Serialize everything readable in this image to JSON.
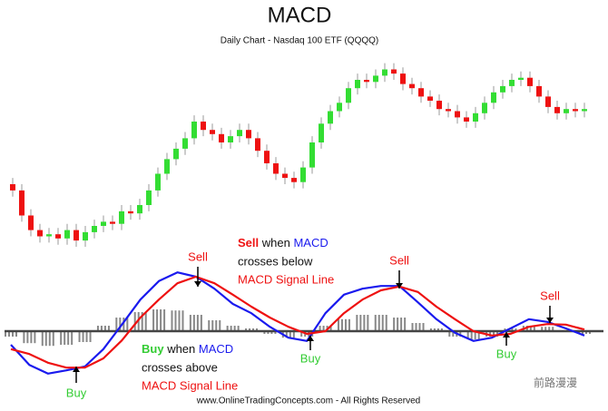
{
  "chart_data": [
    {
      "type": "candlestick",
      "title": "MACD",
      "subtitle": "Daily Chart - Nasdaq 100 ETF (QQQQ)",
      "up_color": "#33dd33",
      "down_color": "#ee1111",
      "ylim": [
        0,
        100
      ],
      "open": [
        40,
        37,
        25,
        18,
        15,
        16,
        14,
        18,
        13,
        17,
        20,
        22,
        21,
        27,
        26,
        30,
        37,
        45,
        52,
        57,
        62,
        70,
        66,
        64,
        60,
        63,
        66,
        62,
        56,
        50,
        45,
        43,
        41,
        48,
        60,
        69,
        75,
        79,
        86,
        90,
        89,
        92,
        95,
        93,
        88,
        86,
        82,
        80,
        76,
        75,
        72,
        70,
        74,
        79,
        84,
        87,
        90,
        91,
        87,
        82,
        77,
        74,
        76,
        75
      ],
      "high": [
        43,
        40,
        28,
        21,
        19,
        19,
        21,
        21,
        20,
        23,
        25,
        25,
        30,
        30,
        33,
        40,
        48,
        55,
        60,
        65,
        73,
        73,
        69,
        67,
        66,
        69,
        69,
        65,
        59,
        53,
        48,
        46,
        51,
        63,
        72,
        78,
        82,
        89,
        93,
        93,
        95,
        98,
        98,
        96,
        91,
        89,
        85,
        83,
        79,
        78,
        75,
        77,
        82,
        87,
        90,
        93,
        94,
        94,
        90,
        85,
        80,
        79,
        79,
        79
      ],
      "low": [
        34,
        22,
        15,
        12,
        12,
        11,
        11,
        10,
        10,
        14,
        17,
        18,
        18,
        23,
        23,
        27,
        34,
        42,
        49,
        54,
        59,
        63,
        61,
        57,
        57,
        60,
        59,
        53,
        47,
        42,
        40,
        38,
        38,
        45,
        57,
        66,
        72,
        76,
        83,
        86,
        86,
        89,
        90,
        85,
        83,
        79,
        77,
        73,
        72,
        69,
        67,
        67,
        71,
        76,
        81,
        84,
        87,
        84,
        79,
        74,
        71,
        71,
        72,
        72
      ],
      "close": [
        37,
        25,
        18,
        15,
        16,
        14,
        18,
        13,
        17,
        20,
        22,
        21,
        27,
        26,
        30,
        37,
        45,
        52,
        57,
        62,
        70,
        66,
        64,
        60,
        63,
        66,
        62,
        56,
        50,
        45,
        43,
        41,
        48,
        60,
        69,
        75,
        79,
        86,
        90,
        89,
        92,
        95,
        93,
        88,
        86,
        82,
        80,
        76,
        75,
        72,
        70,
        74,
        79,
        84,
        87,
        90,
        91,
        87,
        82,
        77,
        74,
        76,
        75,
        76
      ]
    },
    {
      "type": "macd",
      "ylim": [
        -1.2,
        1.2
      ],
      "series": [
        {
          "name": "MACD",
          "color": "#1a1aee",
          "values": [
            -0.25,
            -0.62,
            -0.78,
            -0.72,
            -0.65,
            -0.33,
            0.12,
            0.58,
            0.92,
            1.08,
            1.0,
            0.78,
            0.5,
            0.33,
            0.08,
            -0.12,
            -0.18,
            0.33,
            0.67,
            0.78,
            0.83,
            0.83,
            0.53,
            0.22,
            -0.03,
            -0.18,
            -0.12,
            0.05,
            0.22,
            0.17,
            0.05,
            -0.08
          ]
        },
        {
          "name": "MACD Signal Line",
          "color": "#ee1111",
          "values": [
            -0.33,
            -0.42,
            -0.58,
            -0.67,
            -0.67,
            -0.5,
            -0.17,
            0.25,
            0.58,
            0.88,
            1.0,
            0.88,
            0.67,
            0.45,
            0.25,
            0.08,
            -0.05,
            0,
            0.33,
            0.58,
            0.75,
            0.82,
            0.72,
            0.45,
            0.22,
            0,
            -0.08,
            -0.05,
            0.08,
            0.13,
            0.12,
            0.03
          ]
        }
      ],
      "histogram": {
        "color": "#888888",
        "values": [
          -0.1,
          -0.22,
          -0.27,
          -0.25,
          -0.2,
          0.1,
          0.25,
          0.35,
          0.4,
          0.38,
          0.3,
          0.2,
          0.1,
          0.05,
          -0.05,
          -0.12,
          -0.1,
          0.1,
          0.22,
          0.3,
          0.3,
          0.25,
          0.15,
          0.05,
          -0.1,
          -0.15,
          -0.1,
          0.05,
          0.1,
          0.08,
          0,
          -0.05
        ]
      },
      "sell_note": [
        "Sell",
        "when",
        "MACD",
        "crosses below",
        "MACD Signal Line"
      ],
      "buy_note": [
        "Buy",
        "when",
        "MACD",
        "crosses above",
        "MACD Signal Line"
      ],
      "signals": [
        "Sell",
        "Sell",
        "Sell",
        "Buy",
        "Buy",
        "Buy"
      ],
      "footer": "www.OnlineTradingConcepts.com - All Rights Reserved",
      "watermark": "前路漫漫"
    }
  ]
}
